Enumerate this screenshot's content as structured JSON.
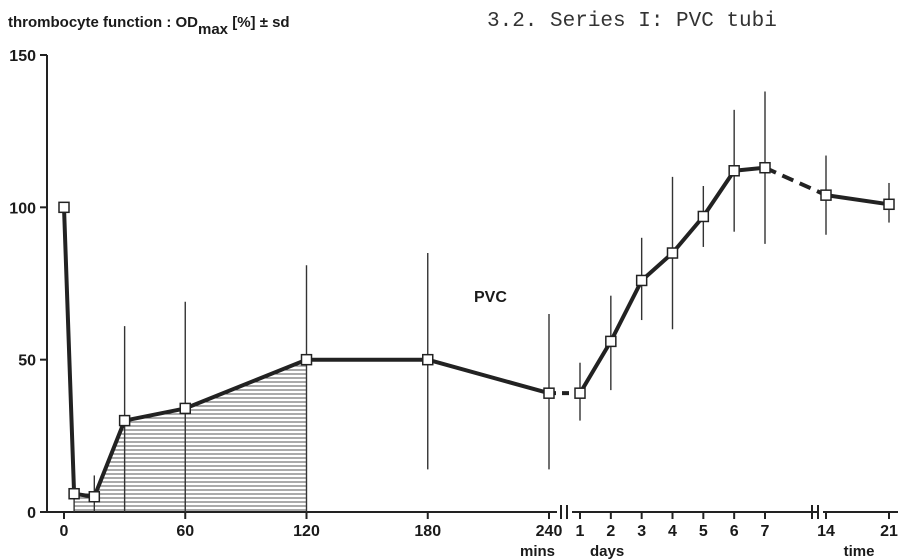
{
  "header_text": "3.2. Series I: PVC tubi",
  "chart_data": {
    "type": "line",
    "title": "",
    "ylabel_main": "thrombocyte function : OD",
    "ylabel_sub": "max",
    "ylabel_suffix": " [%] ± sd",
    "ylim": [
      0,
      150
    ],
    "yticks": [
      "0",
      "50",
      "100",
      "150"
    ],
    "annotation": "PVC",
    "segments": [
      {
        "unit": "mins",
        "ticks": [
          0,
          60,
          120,
          180,
          240
        ],
        "tick_labels": [
          "0",
          "60",
          "120",
          "180",
          "240"
        ],
        "points": [
          {
            "x": 0,
            "y": 100,
            "lo": 100,
            "hi": 100
          },
          {
            "x": 5,
            "y": 6,
            "lo": 0,
            "hi": 15
          },
          {
            "x": 15,
            "y": 5,
            "lo": 0,
            "hi": 12
          },
          {
            "x": 30,
            "y": 30,
            "lo": 0,
            "hi": 61
          },
          {
            "x": 60,
            "y": 34,
            "lo": 0,
            "hi": 69
          },
          {
            "x": 120,
            "y": 50,
            "lo": 0,
            "hi": 81
          },
          {
            "x": 180,
            "y": 50,
            "lo": 14,
            "hi": 85
          },
          {
            "x": 240,
            "y": 39,
            "lo": 14,
            "hi": 65
          }
        ]
      },
      {
        "unit": "days",
        "ticks": [
          1,
          2,
          3,
          4,
          5,
          6,
          7
        ],
        "tick_labels": [
          "1",
          "2",
          "3",
          "4",
          "5",
          "6",
          "7"
        ],
        "points": [
          {
            "x": 1,
            "y": 39,
            "lo": 30,
            "hi": 49
          },
          {
            "x": 2,
            "y": 56,
            "lo": 40,
            "hi": 71
          },
          {
            "x": 3,
            "y": 76,
            "lo": 63,
            "hi": 90
          },
          {
            "x": 4,
            "y": 85,
            "lo": 60,
            "hi": 110
          },
          {
            "x": 5,
            "y": 97,
            "lo": 87,
            "hi": 107
          },
          {
            "x": 6,
            "y": 112,
            "lo": 92,
            "hi": 132
          },
          {
            "x": 7,
            "y": 113,
            "lo": 88,
            "hi": 138
          }
        ]
      },
      {
        "unit": "time",
        "ticks": [
          14,
          21
        ],
        "tick_labels": [
          "14",
          "21"
        ],
        "points": [
          {
            "x": 14,
            "y": 104,
            "lo": 91,
            "hi": 117
          },
          {
            "x": 21,
            "y": 101,
            "lo": 95,
            "hi": 108
          }
        ]
      }
    ],
    "shaded_range_mins": [
      0,
      120
    ]
  }
}
